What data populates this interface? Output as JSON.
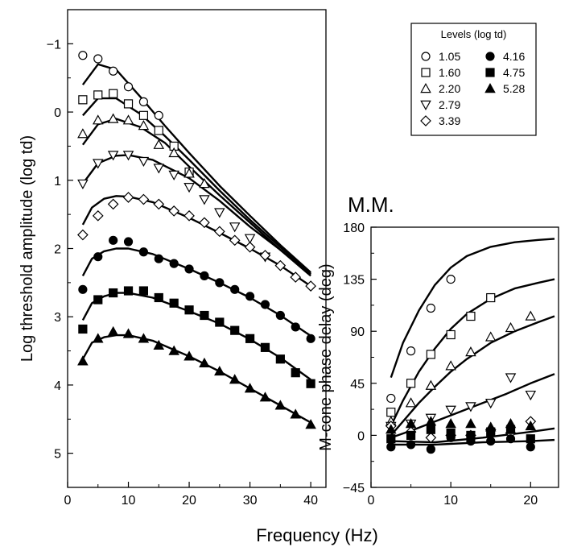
{
  "figure": {
    "subject_label": "M.M.",
    "x_axis_label": "Frequency (Hz)"
  },
  "chart_data": [
    {
      "type": "scatter",
      "ylabel": "Log threshold amplitude (log td)",
      "xlim": [
        0,
        42.5
      ],
      "ylim": [
        -1.5,
        5.5
      ],
      "y_inverted": true,
      "xticks": [
        "0",
        "10",
        "20",
        "30",
        "40"
      ],
      "yticks": [
        "−1",
        "0",
        "1",
        "2",
        "3",
        "4",
        "5"
      ],
      "ytick_values": [
        -1,
        0,
        1,
        2,
        3,
        4,
        5
      ],
      "x": [
        2.5,
        5,
        7.5,
        10,
        12.5,
        15,
        17.5,
        20,
        22.5,
        25,
        27.5,
        30,
        32.5,
        35,
        37.5,
        40
      ],
      "series": [
        {
          "name": "1.05",
          "marker": "circle-open",
          "values": [
            -0.83,
            -0.78,
            -0.6,
            -0.37,
            -0.15,
            0.05,
            null,
            null,
            null,
            null,
            null,
            null,
            null,
            null,
            null,
            null
          ]
        },
        {
          "name": "1.60",
          "marker": "square-open",
          "values": [
            -0.18,
            -0.25,
            -0.27,
            -0.12,
            0.05,
            0.27,
            0.5,
            0.88,
            null,
            null,
            null,
            null,
            null,
            null,
            null,
            null
          ]
        },
        {
          "name": "2.20",
          "marker": "triangle-up-open",
          "values": [
            0.32,
            0.12,
            0.1,
            0.12,
            0.2,
            0.48,
            0.6,
            0.9,
            1.05,
            null,
            null,
            null,
            null,
            null,
            null,
            null
          ]
        },
        {
          "name": "2.79",
          "marker": "triangle-down-open",
          "values": [
            1.05,
            0.75,
            0.63,
            0.63,
            0.72,
            0.82,
            0.92,
            1.1,
            1.28,
            1.47,
            1.68,
            1.85,
            2.12,
            null,
            null,
            null
          ]
        },
        {
          "name": "3.39",
          "marker": "diamond-open",
          "values": [
            1.8,
            1.52,
            1.35,
            1.25,
            1.28,
            1.35,
            1.45,
            1.52,
            1.62,
            1.75,
            1.88,
            1.98,
            2.1,
            2.25,
            2.42,
            2.55
          ]
        },
        {
          "name": "4.16",
          "marker": "circle-filled",
          "values": [
            2.6,
            2.12,
            1.88,
            1.9,
            2.05,
            2.15,
            2.22,
            2.3,
            2.4,
            2.5,
            2.6,
            2.7,
            2.82,
            2.98,
            3.15,
            3.32
          ]
        },
        {
          "name": "4.75",
          "marker": "square-filled",
          "values": [
            3.18,
            2.75,
            2.65,
            2.62,
            2.62,
            2.72,
            2.8,
            2.9,
            2.98,
            3.08,
            3.2,
            3.32,
            3.45,
            3.62,
            3.82,
            3.98
          ]
        },
        {
          "name": "5.28",
          "marker": "triangle-up-filled",
          "values": [
            3.65,
            3.32,
            3.22,
            3.25,
            3.32,
            3.42,
            3.5,
            3.58,
            3.68,
            3.8,
            3.92,
            4.05,
            4.18,
            4.3,
            4.43,
            4.58
          ]
        }
      ],
      "fit_lines": [
        {
          "name": "1.05",
          "x": [
            2.5,
            5,
            8,
            12,
            16,
            20,
            25,
            30,
            35,
            40
          ],
          "y": [
            -0.4,
            -0.7,
            -0.62,
            -0.22,
            0.2,
            0.6,
            1.08,
            1.52,
            1.95,
            2.35
          ]
        },
        {
          "name": "1.60",
          "x": [
            2.5,
            5,
            8,
            12,
            16,
            20,
            25,
            30,
            35,
            40
          ],
          "y": [
            0.05,
            -0.2,
            -0.2,
            0.03,
            0.35,
            0.7,
            1.15,
            1.58,
            1.98,
            2.37
          ]
        },
        {
          "name": "2.20",
          "x": [
            2.5,
            5,
            8,
            12,
            16,
            20,
            25,
            30,
            35,
            40
          ],
          "y": [
            0.48,
            0.18,
            0.1,
            0.22,
            0.45,
            0.8,
            1.22,
            1.62,
            2.02,
            2.4
          ]
        },
        {
          "name": "2.79",
          "x": [
            2.5,
            5,
            8,
            10,
            14,
            20,
            25,
            30,
            35,
            40
          ],
          "y": [
            1.05,
            0.75,
            0.64,
            0.63,
            0.7,
            0.97,
            1.3,
            1.68,
            2.02,
            2.38
          ]
        },
        {
          "name": "3.39",
          "x": [
            2.5,
            4,
            6,
            8,
            10,
            14,
            20,
            25,
            30,
            35,
            40
          ],
          "y": [
            1.65,
            1.4,
            1.27,
            1.23,
            1.24,
            1.32,
            1.55,
            1.77,
            2.0,
            2.25,
            2.55
          ]
        },
        {
          "name": "4.16",
          "x": [
            2.5,
            4,
            6,
            8,
            10,
            14,
            20,
            25,
            30,
            35,
            40
          ],
          "y": [
            2.4,
            2.15,
            2.04,
            2.0,
            2.0,
            2.08,
            2.3,
            2.5,
            2.72,
            2.98,
            3.28
          ]
        },
        {
          "name": "4.75",
          "x": [
            2.5,
            4,
            6,
            8,
            10,
            14,
            20,
            25,
            30,
            35,
            40
          ],
          "y": [
            3.05,
            2.8,
            2.7,
            2.65,
            2.65,
            2.72,
            2.92,
            3.1,
            3.33,
            3.6,
            3.92
          ]
        },
        {
          "name": "5.28",
          "x": [
            2.5,
            4,
            6,
            8,
            10,
            14,
            20,
            25,
            30,
            35,
            40
          ],
          "y": [
            3.62,
            3.38,
            3.3,
            3.27,
            3.27,
            3.35,
            3.58,
            3.8,
            4.05,
            4.3,
            4.55
          ]
        }
      ]
    },
    {
      "type": "scatter",
      "ylabel": "M-cone phase delay (deg)",
      "xlim": [
        0,
        23.5
      ],
      "ylim": [
        -45,
        180
      ],
      "xticks": [
        "0",
        "10",
        "20"
      ],
      "yticks": [
        "−45",
        "0",
        "45",
        "90",
        "135",
        "180"
      ],
      "ytick_values": [
        -45,
        0,
        45,
        90,
        135,
        180
      ],
      "x": [
        2.5,
        5,
        7.5,
        10,
        12.5,
        15,
        17.5,
        20
      ],
      "series": [
        {
          "name": "1.05",
          "marker": "circle-open",
          "values": [
            32,
            73,
            110,
            135,
            null,
            null,
            null,
            null
          ]
        },
        {
          "name": "1.60",
          "marker": "square-open",
          "values": [
            20,
            45,
            70,
            87,
            103,
            119,
            null,
            null
          ]
        },
        {
          "name": "2.20",
          "marker": "triangle-up-open",
          "values": [
            12,
            28,
            43,
            60,
            72,
            85,
            93,
            103
          ]
        },
        {
          "name": "2.79",
          "marker": "triangle-down-open",
          "values": [
            8,
            10,
            15,
            22,
            25,
            28,
            50,
            35
          ]
        },
        {
          "name": "3.39",
          "marker": "diamond-open",
          "values": [
            8,
            3,
            -2,
            0,
            0,
            5,
            2,
            12
          ]
        },
        {
          "name": "4.16",
          "marker": "circle-filled",
          "values": [
            -10,
            -8,
            -12,
            -2,
            -5,
            -5,
            -3,
            -10
          ]
        },
        {
          "name": "4.75",
          "marker": "square-filled",
          "values": [
            -3,
            0,
            5,
            2,
            0,
            3,
            5,
            -3
          ]
        },
        {
          "name": "5.28",
          "marker": "triangle-up-filled",
          "values": [
            5,
            10,
            12,
            10,
            10,
            7,
            10,
            8
          ]
        }
      ],
      "fit_lines": [
        {
          "name": "1.05",
          "x": [
            2.5,
            4,
            6,
            8,
            10,
            12,
            15,
            18,
            21,
            23
          ],
          "y": [
            50,
            80,
            108,
            130,
            145,
            155,
            163,
            167,
            169,
            170
          ]
        },
        {
          "name": "1.60",
          "x": [
            2.5,
            4,
            6,
            8,
            10,
            12,
            15,
            18,
            21,
            23
          ],
          "y": [
            8,
            30,
            55,
            75,
            92,
            105,
            118,
            127,
            132,
            135
          ]
        },
        {
          "name": "2.20",
          "x": [
            2.5,
            4,
            6,
            8,
            10,
            12,
            15,
            18,
            21,
            23
          ],
          "y": [
            0,
            12,
            28,
            42,
            55,
            66,
            80,
            90,
            98,
            103
          ]
        },
        {
          "name": "2.79",
          "x": [
            2.5,
            5,
            8,
            11,
            14,
            17,
            20,
            23
          ],
          "y": [
            -2,
            4,
            12,
            20,
            28,
            36,
            45,
            53
          ]
        },
        {
          "name": "low-a",
          "x": [
            2.5,
            8,
            14,
            20,
            23
          ],
          "y": [
            -5,
            -6,
            -2,
            3,
            6
          ]
        },
        {
          "name": "low-b",
          "x": [
            2.5,
            8,
            14,
            20,
            23
          ],
          "y": [
            -8,
            -8,
            -6,
            -5,
            -4
          ]
        }
      ]
    }
  ],
  "legend": {
    "title": "Levels (log td)",
    "items": [
      {
        "label": "1.05",
        "marker": "circle-open"
      },
      {
        "label": "1.60",
        "marker": "square-open"
      },
      {
        "label": "2.20",
        "marker": "triangle-up-open"
      },
      {
        "label": "2.79",
        "marker": "triangle-down-open"
      },
      {
        "label": "3.39",
        "marker": "diamond-open"
      },
      {
        "label": "4.16",
        "marker": "circle-filled"
      },
      {
        "label": "4.75",
        "marker": "square-filled"
      },
      {
        "label": "5.28",
        "marker": "triangle-up-filled"
      }
    ]
  }
}
